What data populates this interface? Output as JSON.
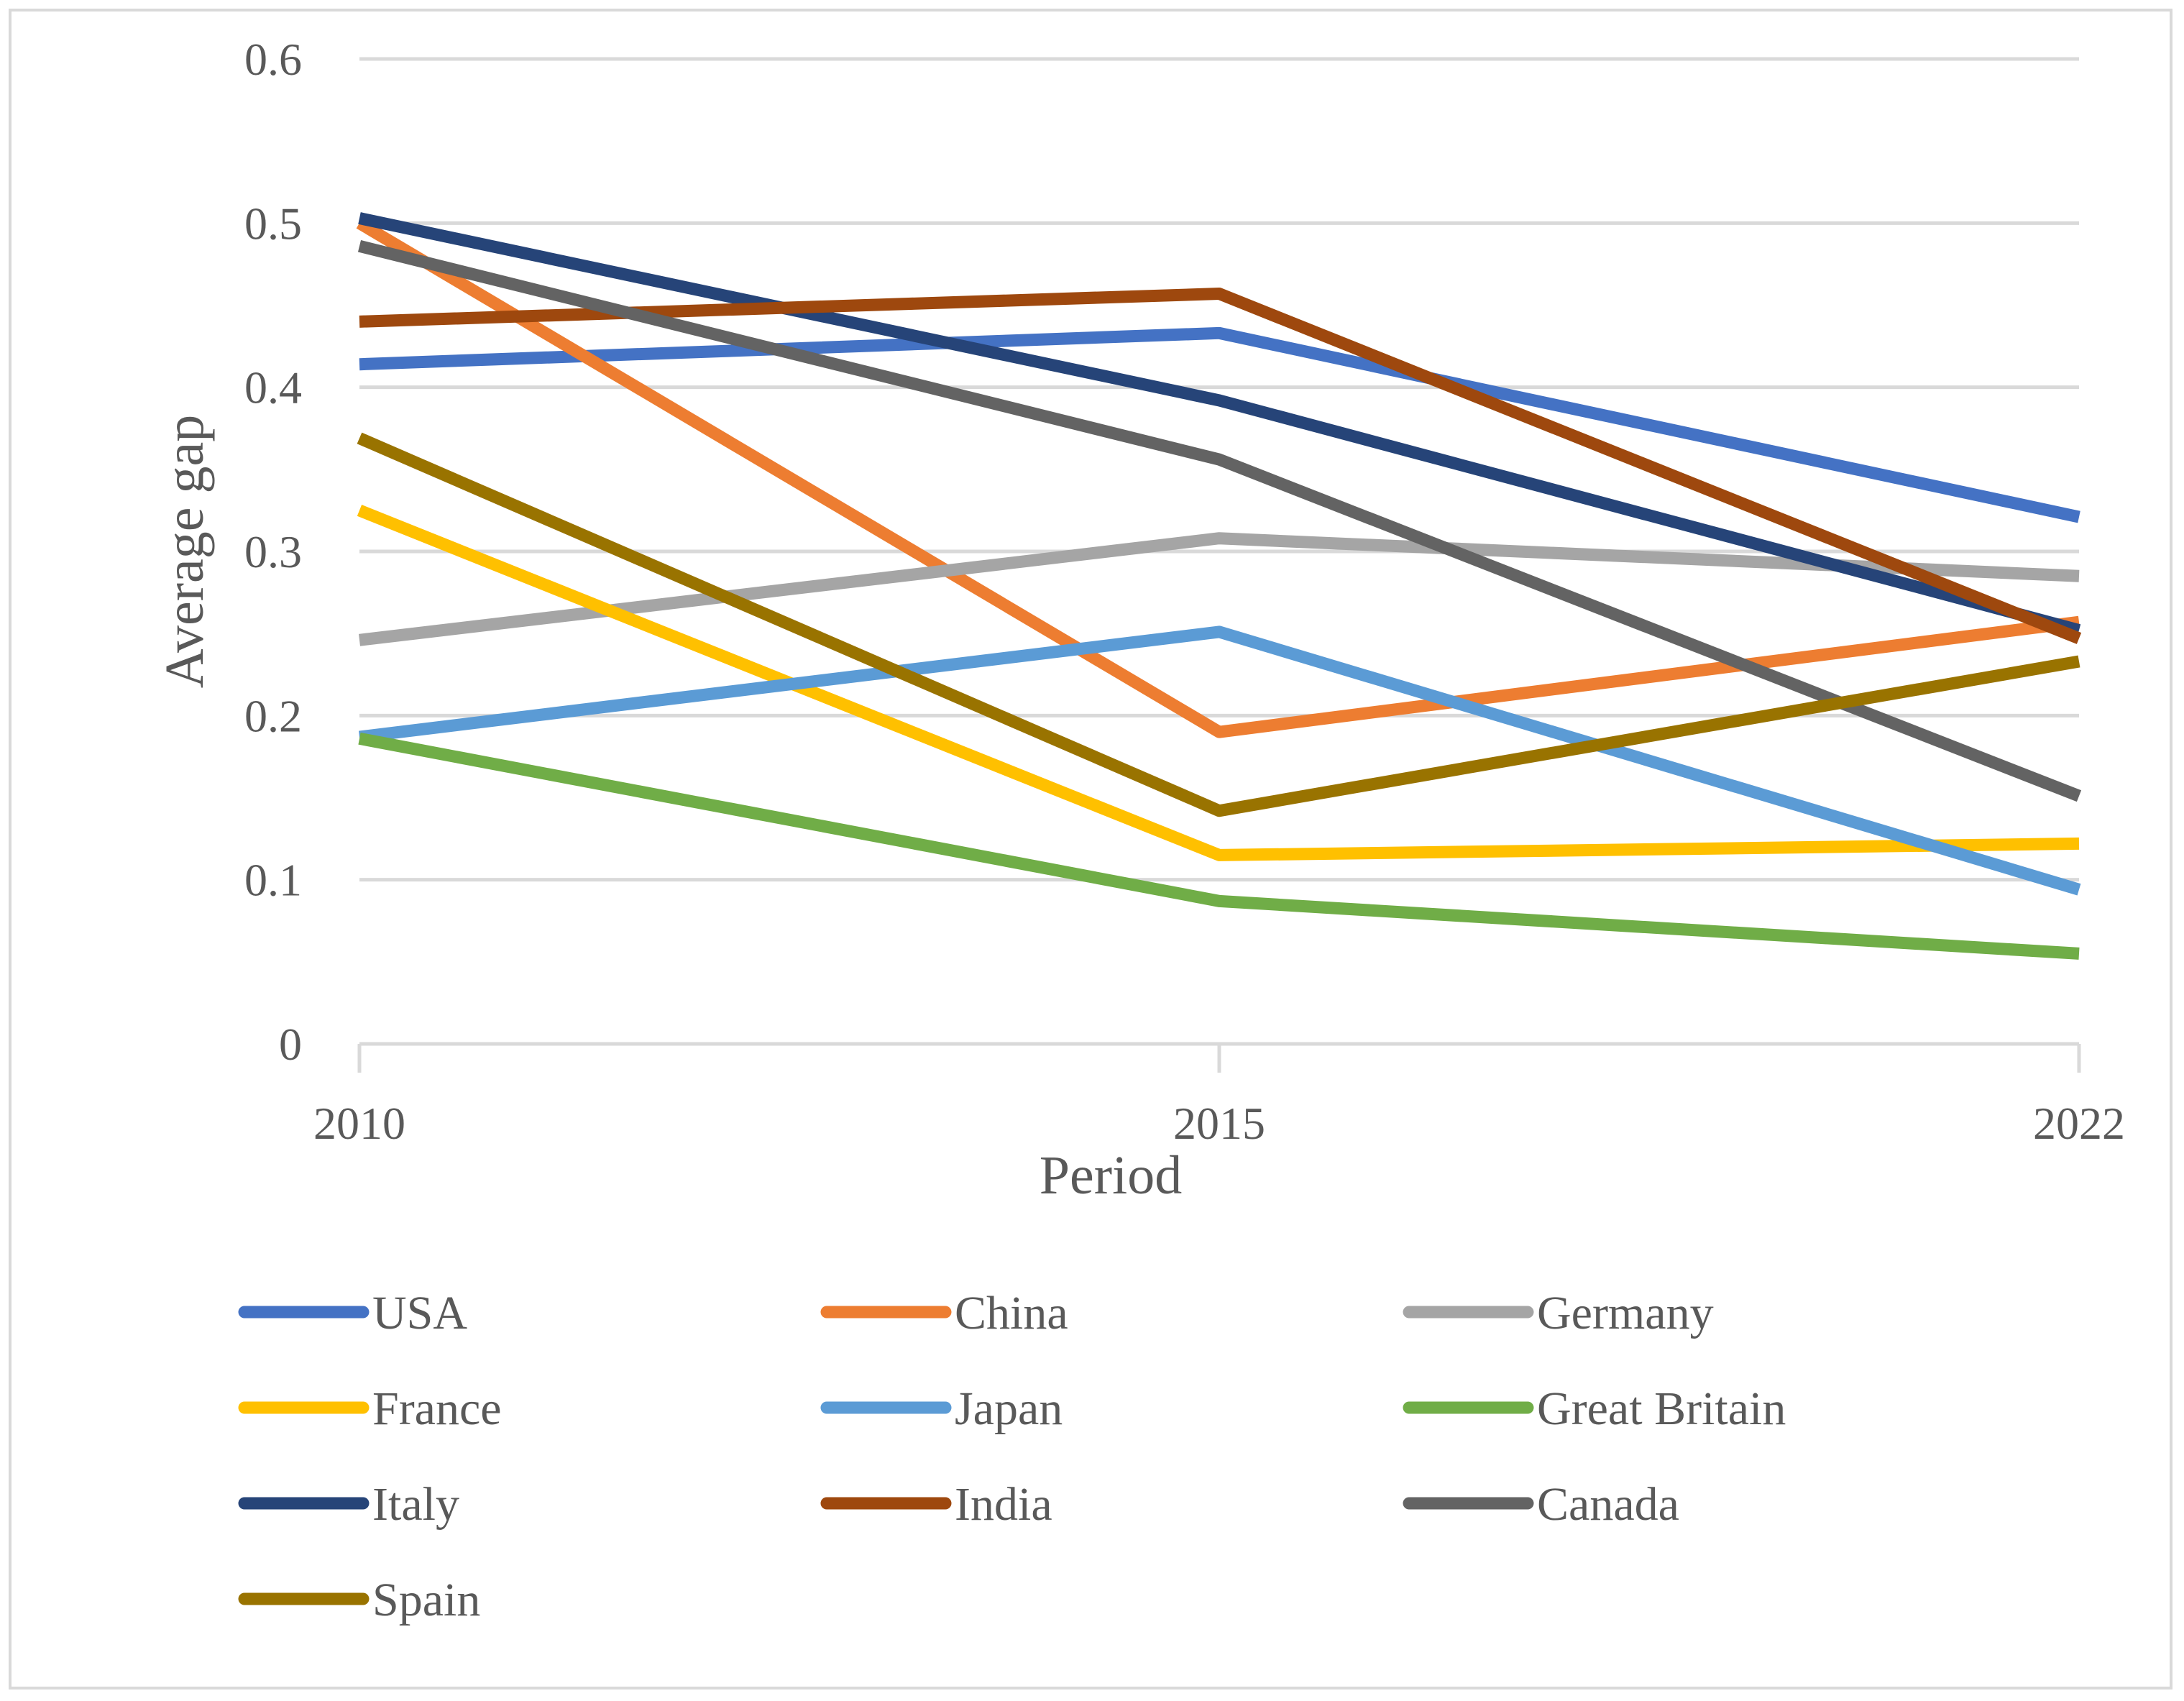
{
  "chart_data": {
    "type": "line",
    "title": "",
    "xlabel": "Period",
    "ylabel": "Average gap",
    "categories": [
      "2010",
      "2015",
      "2022"
    ],
    "ylim": [
      0,
      0.6
    ],
    "yticks": [
      0,
      0.1,
      0.2,
      0.3,
      0.4,
      0.5,
      0.6
    ],
    "ytick_labels": [
      "0",
      "0.1",
      "0.2",
      "0.3",
      "0.4",
      "0.5",
      "0.6"
    ],
    "grid": true,
    "legend_position": "bottom",
    "series": [
      {
        "name": "USA",
        "color": "#4472C4",
        "values": [
          0.414,
          0.433,
          0.321
        ]
      },
      {
        "name": "China",
        "color": "#ED7D31",
        "values": [
          0.5,
          0.19,
          0.257
        ]
      },
      {
        "name": "Germany",
        "color": "#A5A5A5",
        "values": [
          0.246,
          0.308,
          0.285
        ]
      },
      {
        "name": "France",
        "color": "#FFC000",
        "values": [
          0.325,
          0.115,
          0.122
        ]
      },
      {
        "name": "Japan",
        "color": "#5B9BD5",
        "values": [
          0.187,
          0.251,
          0.094
        ]
      },
      {
        "name": "Great Britain",
        "color": "#70AD47",
        "values": [
          0.186,
          0.087,
          0.055
        ]
      },
      {
        "name": "Italy",
        "color": "#264478",
        "values": [
          0.503,
          0.392,
          0.252
        ]
      },
      {
        "name": "India",
        "color": "#9E480E",
        "values": [
          0.44,
          0.457,
          0.247
        ]
      },
      {
        "name": "Canada",
        "color": "#636363",
        "values": [
          0.486,
          0.356,
          0.151
        ]
      },
      {
        "name": "Spain",
        "color": "#997300",
        "values": [
          0.369,
          0.142,
          0.233
        ]
      }
    ]
  }
}
